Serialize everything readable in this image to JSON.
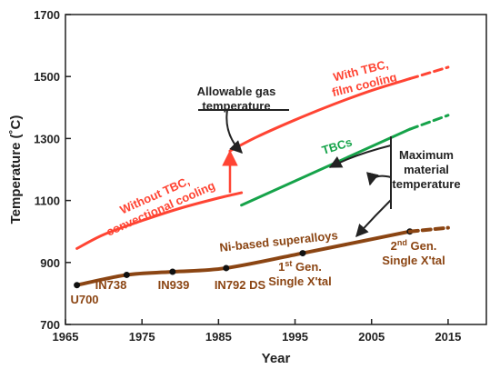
{
  "chart_data": {
    "type": "line",
    "xlabel": "Year",
    "ylabel": "Temperature (˚C)",
    "xlim": [
      1965,
      2020
    ],
    "ylim": [
      700,
      1700
    ],
    "x_ticks": [
      1965,
      1975,
      1985,
      1995,
      2005,
      2015
    ],
    "y_ticks": [
      700,
      900,
      1100,
      1300,
      1500,
      1700
    ],
    "grid": false,
    "colors": {
      "red": "#ff4433",
      "green": "#16a34a",
      "brown": "#8b4513",
      "axis": "#222222"
    },
    "series": [
      {
        "x": [
          1966.5,
          1970,
          1975,
          1980,
          1985,
          1988
        ],
        "y": [
          945,
          990,
          1035,
          1075,
          1108,
          1125
        ],
        "style": "solid",
        "color_key": "red"
      },
      {
        "x": [
          1986.5,
          1990,
          1995,
          2000,
          2005,
          2010
        ],
        "y": [
          1260,
          1305,
          1360,
          1410,
          1455,
          1493
        ],
        "style": "solid",
        "color_key": "red"
      },
      {
        "x": [
          2010,
          2015
        ],
        "y": [
          1493,
          1530
        ],
        "style": "dashed",
        "color_key": "red"
      },
      {
        "x": [
          1988,
          2010
        ],
        "y": [
          1085,
          1330
        ],
        "style": "solid",
        "color_key": "green"
      },
      {
        "x": [
          2010,
          2015
        ],
        "y": [
          1330,
          1375
        ],
        "style": "dashed",
        "color_key": "green"
      },
      {
        "x": [
          1966.5,
          1973,
          1979,
          1986,
          1996,
          2010
        ],
        "y": [
          827,
          860,
          870,
          882,
          930,
          1000
        ],
        "style": "solid",
        "color_key": "brown",
        "markers": true
      },
      {
        "x": [
          2010,
          2015
        ],
        "y": [
          1000,
          1012
        ],
        "style": "dashed",
        "color_key": "brown"
      }
    ],
    "point_labels": [
      {
        "lines": [
          "U700"
        ]
      },
      {
        "lines": [
          "IN738"
        ]
      },
      {
        "lines": [
          "IN939"
        ]
      },
      {
        "lines": [
          "IN792 DS"
        ]
      },
      {
        "lines": [
          "1st Gen.",
          "Single X'tal"
        ],
        "superscript": "st"
      },
      {
        "lines": [
          "2nd Gen.",
          "Single X'tal"
        ],
        "superscript": "nd"
      }
    ],
    "annotations": [
      {
        "lines": [
          "Without TBC,",
          "convectional cooling"
        ],
        "color_key": "red",
        "rotate": -24
      },
      {
        "lines": [
          "With TBC,",
          "film cooling"
        ],
        "color_key": "red",
        "rotate": -14
      },
      {
        "lines": [
          "TBCs"
        ],
        "color_key": "green",
        "rotate": -17
      },
      {
        "lines": [
          "Ni-based superalloys"
        ],
        "color_key": "brown",
        "rotate": -6
      },
      {
        "lines": [
          "Allowable gas",
          "temperature"
        ],
        "color_key": "axis",
        "rotate": 0
      },
      {
        "lines": [
          "Maximum",
          "material",
          "temperature"
        ],
        "color_key": "axis",
        "rotate": 0
      }
    ]
  }
}
